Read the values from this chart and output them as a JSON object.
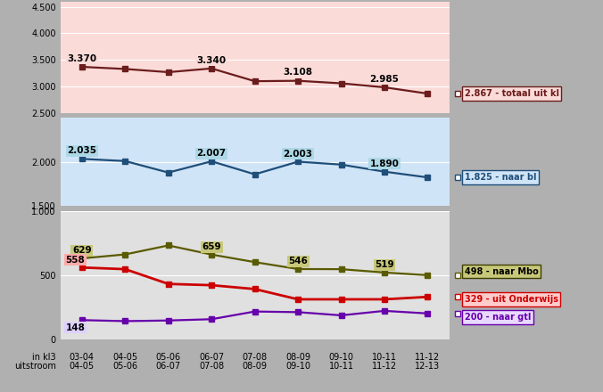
{
  "x_labels_top": [
    "03-04",
    "04-05",
    "05-06",
    "06-07",
    "07-08",
    "08-09",
    "09-10",
    "10-11",
    "11-12"
  ],
  "x_labels_bot": [
    "04-05",
    "05-06",
    "06-07",
    "07-08",
    "08-09",
    "09-10",
    "10-11",
    "11-12",
    "12-13"
  ],
  "totaal_y": [
    3370,
    3330,
    3270,
    3340,
    3100,
    3108,
    3060,
    2985,
    2867
  ],
  "naar_bl_y": [
    2035,
    2010,
    1880,
    2007,
    1860,
    2003,
    1970,
    1890,
    1825
  ],
  "naar_mbo_y": [
    629,
    660,
    730,
    659,
    600,
    546,
    545,
    519,
    498
  ],
  "uit_onderwijs_y": [
    558,
    545,
    430,
    420,
    390,
    310,
    310,
    310,
    329
  ],
  "naar_gtl_y": [
    148,
    140,
    145,
    155,
    215,
    210,
    185,
    220,
    200
  ],
  "totaal_color": "#6B1C1C",
  "naar_bl_color": "#1F4E79",
  "naar_mbo_color": "#5A5A00",
  "uit_onderwijs_color": "#CC0000",
  "naar_gtl_color": "#6600AA",
  "bg_top": "#FADBD8",
  "bg_mid": "#D0E4F7",
  "bg_bot": "#E0E0E0",
  "bg_fig": "#B0B0B0",
  "legend_totaal": "2.867 - totaal uit kl",
  "legend_bl": "1.825 - naar bl",
  "legend_mbo": "498 - naar Mbo",
  "legend_onderwijs": "329 - uit Onderwijs",
  "legend_gtl": "200 - naar gtl",
  "totaal_label_indices": [
    0,
    3,
    5,
    7
  ],
  "totaal_label_values": [
    3370,
    3340,
    3108,
    2985
  ],
  "bl_label_indices": [
    0,
    3,
    5,
    7
  ],
  "bl_label_values": [
    2035,
    2007,
    2003,
    1890
  ],
  "mbo_label_indices": [
    0,
    3,
    5,
    7
  ],
  "mbo_label_values": [
    629,
    659,
    546,
    519
  ]
}
